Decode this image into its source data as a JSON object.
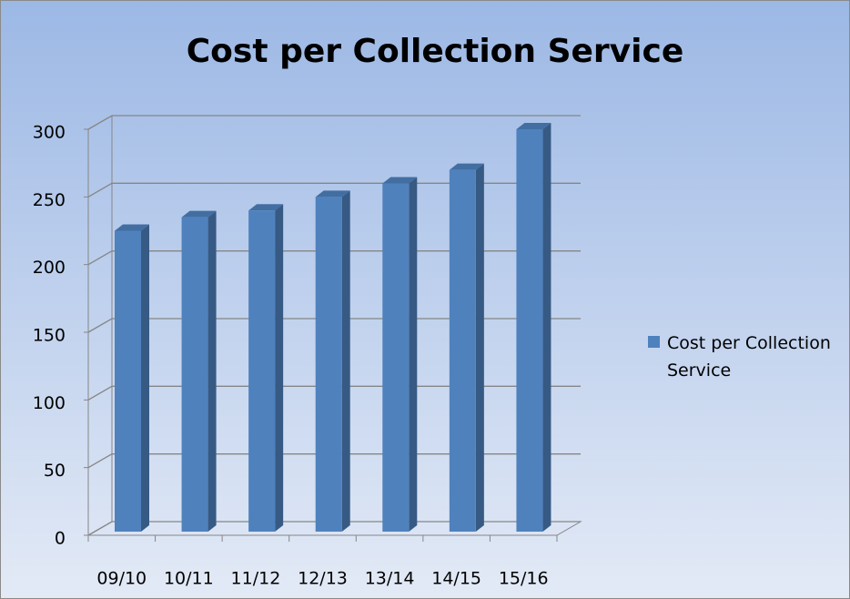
{
  "chart_data": {
    "type": "bar3d",
    "title": "Cost per Collection Service",
    "categories": [
      "09/10",
      "10/11",
      "11/12",
      "12/13",
      "13/14",
      "14/15",
      "15/16"
    ],
    "series": [
      {
        "name": "Cost per Collection Service",
        "color": "#4f81bd",
        "values": [
          225,
          235,
          240,
          250,
          260,
          270,
          300
        ]
      }
    ],
    "ylim": [
      0,
      300
    ],
    "yticks": [
      0,
      50,
      100,
      150,
      200,
      250,
      300
    ],
    "grid": true,
    "legend": "right"
  }
}
